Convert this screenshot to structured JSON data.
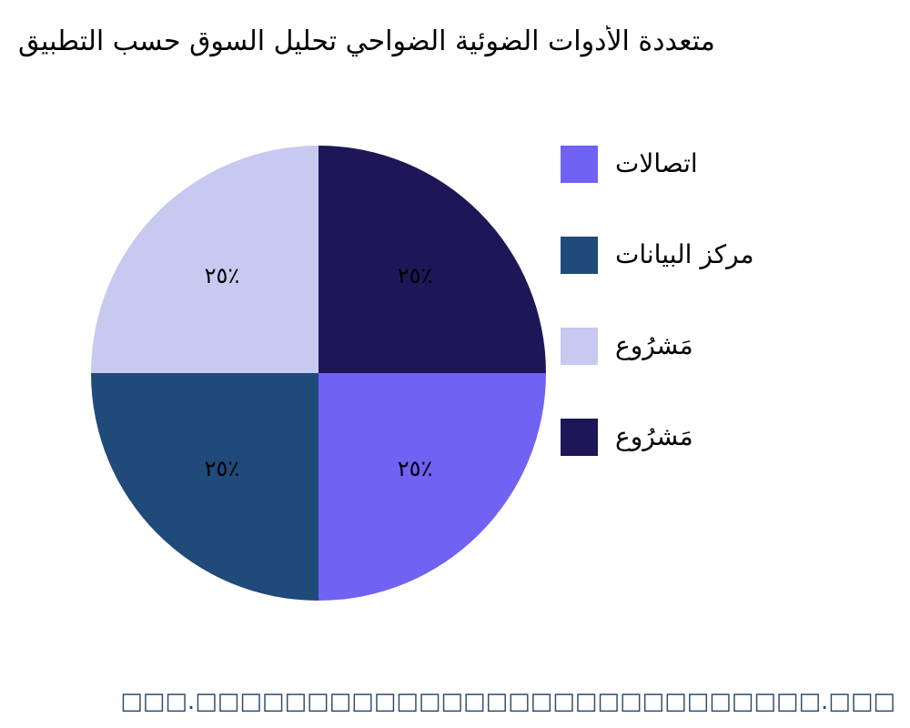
{
  "chart_data": {
    "type": "pie",
    "title": "متعددة الأدوات الضوئية الضواحي تحليل السوق حسب التطبيق",
    "source": "□□□.□□□□□□□□□□□□□□□□□□□□□□□□□□□□.□□□",
    "categories": [
      "اتصالات",
      "مركز البيانات",
      "مَشرُوع",
      "مَشرُوع"
    ],
    "values": [
      25,
      25,
      25,
      25
    ],
    "value_labels": [
      "٢٥٪",
      "٢٥٪",
      "٢٥٪",
      "٢٥٪"
    ],
    "colors": [
      "#7062f2",
      "#1f4a7a",
      "#c8c9f0",
      "#1e1757"
    ],
    "legend": "right"
  }
}
